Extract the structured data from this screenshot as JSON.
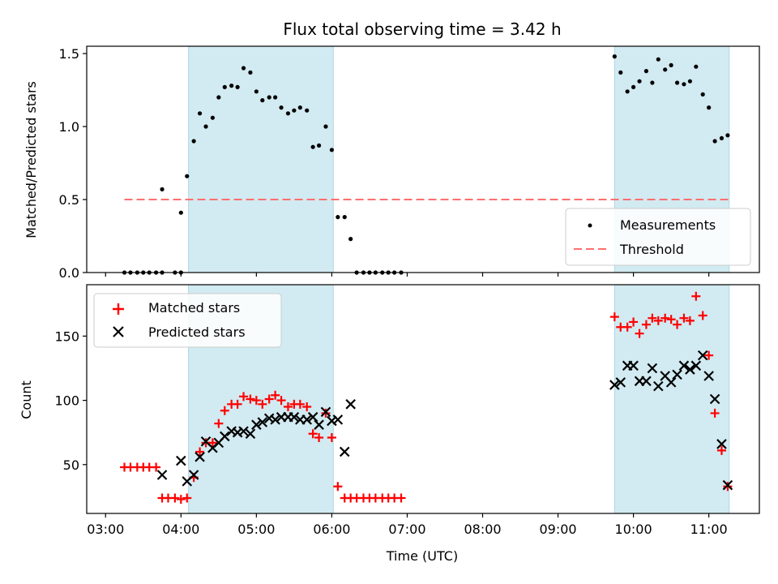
{
  "chart_data": {
    "type": "scatter",
    "title": "Flux total observing time = 3.42 h",
    "xlabel": "Time (UTC)",
    "x_ticks": [
      "03:00",
      "04:00",
      "05:00",
      "06:00",
      "07:00",
      "08:00",
      "09:00",
      "10:00",
      "11:00"
    ],
    "x_range_hours": [
      2.75,
      11.67
    ],
    "shaded_intervals": [
      [
        4.1,
        6.02
      ],
      [
        9.75,
        11.27
      ]
    ],
    "colors": {
      "shade": "#add8e6",
      "matched": "#ff0000",
      "predicted": "#000000",
      "threshold": "#ff6f6f",
      "measurements": "#000000"
    },
    "panels": [
      {
        "ylabel": "Matched/Predicted stars",
        "ylim": [
          0,
          1.55
        ],
        "y_ticks": [
          "0.0",
          "0.5",
          "1.0",
          "1.5"
        ],
        "legend": {
          "location": "lower-right",
          "items": [
            "Measurements",
            "Threshold"
          ]
        },
        "threshold": {
          "name": "Threshold",
          "value": 0.5,
          "x_range": [
            3.25,
            11.27
          ]
        },
        "series": [
          {
            "name": "Measurements",
            "marker": "dot",
            "points": [
              [
                3.25,
                0.0
              ],
              [
                3.33,
                0.0
              ],
              [
                3.42,
                0.0
              ],
              [
                3.5,
                0.0
              ],
              [
                3.58,
                0.0
              ],
              [
                3.67,
                0.0
              ],
              [
                3.75,
                0.0
              ],
              [
                3.75,
                0.57
              ],
              [
                3.92,
                0.0
              ],
              [
                4.0,
                0.0
              ],
              [
                4.0,
                0.41
              ],
              [
                4.08,
                0.66
              ],
              [
                4.17,
                0.9
              ],
              [
                4.25,
                1.09
              ],
              [
                4.33,
                1.0
              ],
              [
                4.42,
                1.06
              ],
              [
                4.5,
                1.2
              ],
              [
                4.58,
                1.27
              ],
              [
                4.67,
                1.28
              ],
              [
                4.75,
                1.27
              ],
              [
                4.83,
                1.4
              ],
              [
                4.92,
                1.37
              ],
              [
                5.0,
                1.24
              ],
              [
                5.08,
                1.18
              ],
              [
                5.17,
                1.2
              ],
              [
                5.25,
                1.2
              ],
              [
                5.33,
                1.13
              ],
              [
                5.42,
                1.09
              ],
              [
                5.5,
                1.11
              ],
              [
                5.58,
                1.13
              ],
              [
                5.67,
                1.11
              ],
              [
                5.75,
                0.86
              ],
              [
                5.83,
                0.87
              ],
              [
                5.92,
                1.0
              ],
              [
                6.0,
                0.84
              ],
              [
                6.08,
                0.38
              ],
              [
                6.17,
                0.38
              ],
              [
                6.25,
                0.23
              ],
              [
                6.33,
                0.0
              ],
              [
                6.42,
                0.0
              ],
              [
                6.5,
                0.0
              ],
              [
                6.58,
                0.0
              ],
              [
                6.67,
                0.0
              ],
              [
                6.75,
                0.0
              ],
              [
                6.83,
                0.0
              ],
              [
                6.92,
                0.0
              ],
              [
                9.75,
                1.48
              ],
              [
                9.83,
                1.37
              ],
              [
                9.92,
                1.24
              ],
              [
                10.0,
                1.27
              ],
              [
                10.08,
                1.31
              ],
              [
                10.17,
                1.38
              ],
              [
                10.25,
                1.3
              ],
              [
                10.33,
                1.46
              ],
              [
                10.42,
                1.39
              ],
              [
                10.5,
                1.42
              ],
              [
                10.58,
                1.3
              ],
              [
                10.67,
                1.29
              ],
              [
                10.75,
                1.31
              ],
              [
                10.83,
                1.41
              ],
              [
                10.92,
                1.22
              ],
              [
                11.0,
                1.13
              ],
              [
                11.08,
                0.9
              ],
              [
                11.17,
                0.92
              ],
              [
                11.25,
                0.94
              ]
            ]
          }
        ]
      },
      {
        "ylabel": "Count",
        "ylim": [
          12,
          190
        ],
        "y_ticks": [
          "50",
          "100",
          "150"
        ],
        "legend": {
          "location": "top-left",
          "items": [
            "Matched stars",
            "Predicted stars"
          ]
        },
        "series": [
          {
            "name": "Matched stars",
            "marker": "plus",
            "points": [
              [
                3.25,
                48
              ],
              [
                3.33,
                48
              ],
              [
                3.42,
                48
              ],
              [
                3.5,
                48
              ],
              [
                3.58,
                48
              ],
              [
                3.67,
                48
              ],
              [
                3.75,
                24
              ],
              [
                3.83,
                24
              ],
              [
                3.92,
                24
              ],
              [
                4.0,
                23
              ],
              [
                4.08,
                24
              ],
              [
                4.17,
                40
              ],
              [
                4.25,
                60
              ],
              [
                4.33,
                67
              ],
              [
                4.42,
                67
              ],
              [
                4.5,
                82
              ],
              [
                4.58,
                92
              ],
              [
                4.67,
                97
              ],
              [
                4.75,
                97
              ],
              [
                4.83,
                103
              ],
              [
                4.92,
                101
              ],
              [
                5.0,
                100
              ],
              [
                5.08,
                97
              ],
              [
                5.17,
                101
              ],
              [
                5.25,
                104
              ],
              [
                5.33,
                100
              ],
              [
                5.42,
                95
              ],
              [
                5.5,
                97
              ],
              [
                5.58,
                97
              ],
              [
                5.67,
                95
              ],
              [
                5.75,
                74
              ],
              [
                5.83,
                71
              ],
              [
                5.92,
                90
              ],
              [
                6.0,
                71
              ],
              [
                6.08,
                33
              ],
              [
                6.17,
                24
              ],
              [
                6.25,
                24
              ],
              [
                6.33,
                24
              ],
              [
                6.42,
                24
              ],
              [
                6.5,
                24
              ],
              [
                6.58,
                24
              ],
              [
                6.67,
                24
              ],
              [
                6.75,
                24
              ],
              [
                6.83,
                24
              ],
              [
                6.92,
                24
              ],
              [
                9.75,
                165
              ],
              [
                9.83,
                157
              ],
              [
                9.92,
                157
              ],
              [
                10.0,
                161
              ],
              [
                10.08,
                152
              ],
              [
                10.17,
                159
              ],
              [
                10.25,
                164
              ],
              [
                10.33,
                162
              ],
              [
                10.42,
                164
              ],
              [
                10.5,
                163
              ],
              [
                10.58,
                159
              ],
              [
                10.67,
                164
              ],
              [
                10.75,
                162
              ],
              [
                10.83,
                181
              ],
              [
                10.92,
                166
              ],
              [
                11.0,
                135
              ],
              [
                11.08,
                90
              ],
              [
                11.17,
                61
              ],
              [
                11.25,
                33
              ]
            ]
          },
          {
            "name": "Predicted stars",
            "marker": "x",
            "points": [
              [
                3.75,
                42
              ],
              [
                4.0,
                53
              ],
              [
                4.08,
                37
              ],
              [
                4.17,
                42
              ],
              [
                4.25,
                56
              ],
              [
                4.33,
                68
              ],
              [
                4.42,
                63
              ],
              [
                4.5,
                67
              ],
              [
                4.58,
                72
              ],
              [
                4.67,
                76
              ],
              [
                4.75,
                75
              ],
              [
                4.83,
                76
              ],
              [
                4.92,
                74
              ],
              [
                5.0,
                81
              ],
              [
                5.08,
                83
              ],
              [
                5.17,
                86
              ],
              [
                5.25,
                85
              ],
              [
                5.33,
                87
              ],
              [
                5.42,
                87
              ],
              [
                5.5,
                87
              ],
              [
                5.58,
                85
              ],
              [
                5.67,
                85
              ],
              [
                5.75,
                87
              ],
              [
                5.83,
                81
              ],
              [
                5.92,
                91
              ],
              [
                6.0,
                84
              ],
              [
                6.08,
                85
              ],
              [
                6.17,
                60
              ],
              [
                6.25,
                97
              ],
              [
                9.75,
                112
              ],
              [
                9.83,
                114
              ],
              [
                9.92,
                127
              ],
              [
                10.0,
                127
              ],
              [
                10.08,
                115
              ],
              [
                10.17,
                115
              ],
              [
                10.25,
                125
              ],
              [
                10.33,
                111
              ],
              [
                10.42,
                119
              ],
              [
                10.5,
                114
              ],
              [
                10.58,
                120
              ],
              [
                10.67,
                127
              ],
              [
                10.75,
                124
              ],
              [
                10.83,
                127
              ],
              [
                10.92,
                135
              ],
              [
                11.0,
                119
              ],
              [
                11.08,
                101
              ],
              [
                11.17,
                66
              ],
              [
                11.25,
                34
              ]
            ]
          }
        ]
      }
    ]
  }
}
